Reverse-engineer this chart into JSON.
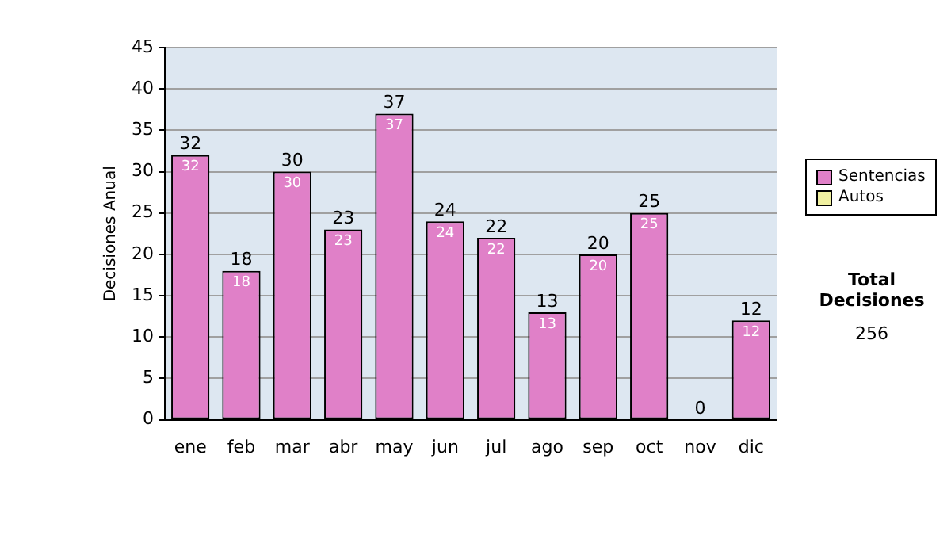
{
  "chart_data": {
    "type": "bar",
    "stacked": true,
    "ylabel": "Decisiones Anual",
    "categories": [
      "ene",
      "feb",
      "mar",
      "abr",
      "may",
      "jun",
      "jul",
      "ago",
      "sep",
      "oct",
      "nov",
      "dic"
    ],
    "series": [
      {
        "name": "Sentencias",
        "color": "#e080c8",
        "values": [
          32,
          18,
          30,
          23,
          37,
          24,
          22,
          13,
          20,
          25,
          0,
          12
        ],
        "value_labels": [
          "32",
          "18",
          "30",
          "23",
          "37",
          "24",
          "22",
          "13",
          "20",
          "25",
          null,
          "12"
        ]
      },
      {
        "name": "Autos",
        "color": "#f0f0a0",
        "values": [
          0,
          0,
          0,
          0,
          0,
          0,
          0,
          0,
          0,
          0,
          0,
          0
        ]
      }
    ],
    "totals": [
      "32",
      "18",
      "30",
      "23",
      "37",
      "24",
      "22",
      "13",
      "20",
      "25",
      "0",
      "12"
    ],
    "ylim": [
      0,
      45
    ],
    "yticks": [
      0,
      5,
      10,
      15,
      20,
      25,
      30,
      35,
      40,
      45
    ],
    "grid": "y",
    "legend": "right",
    "annotations": [
      "Total Decisiones",
      "256"
    ]
  }
}
